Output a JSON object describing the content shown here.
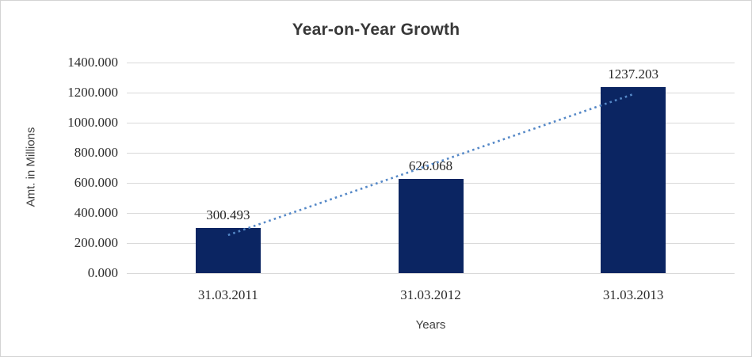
{
  "window": {
    "background": "#ffffff",
    "border_color": "#d3d3d3"
  },
  "chart_data": {
    "type": "bar",
    "title": "Year-on-Year Growth",
    "xlabel": "Years",
    "ylabel": "Amt. in Millions",
    "categories": [
      "31.03.2011",
      "31.03.2012",
      "31.03.2013"
    ],
    "values": [
      300.493,
      626.068,
      1237.203
    ],
    "data_labels": [
      "300.493",
      "626.068",
      "1237.203"
    ],
    "ylim": [
      0,
      1400
    ],
    "y_ticks": [
      0,
      200,
      400,
      600,
      800,
      1000,
      1200,
      1400
    ],
    "y_tick_labels": [
      "0.000",
      "200.000",
      "400.000",
      "600.000",
      "800.000",
      "1000.000",
      "1200.000",
      "1400.000"
    ],
    "grid": true,
    "legend": false,
    "bar_color": "#0b2562",
    "gridline_color": "#d9d9d9",
    "trendline": {
      "type": "linear",
      "style": "dotted",
      "color": "#5588c7",
      "start_value": 252.9,
      "end_value": 1189.6
    }
  }
}
